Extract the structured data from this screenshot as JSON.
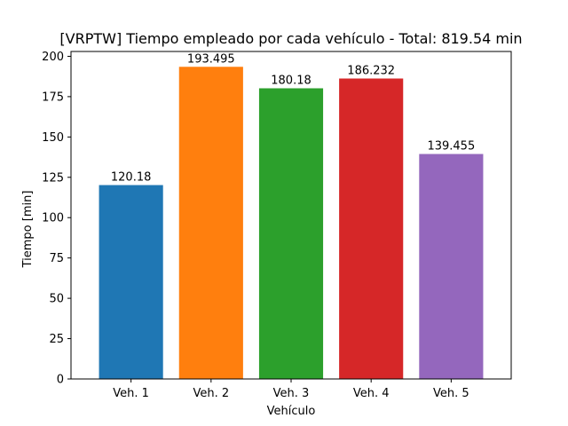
{
  "chart_data": {
    "type": "bar",
    "title": "[VRPTW] Tiempo empleado por cada vehículo - Total: 819.54 min",
    "xlabel": "Vehículo",
    "ylabel": "Tiempo [min]",
    "categories": [
      "Veh. 1",
      "Veh. 2",
      "Veh. 3",
      "Veh. 4",
      "Veh. 5"
    ],
    "values": [
      120.18,
      193.495,
      180.18,
      186.232,
      139.455
    ],
    "value_labels": [
      "120.18",
      "193.495",
      "180.18",
      "186.232",
      "139.455"
    ],
    "colors": [
      "#1f77b4",
      "#ff7f0e",
      "#2ca02c",
      "#d62728",
      "#9467bd"
    ],
    "ylim": [
      0,
      203
    ],
    "yticks": [
      0,
      25,
      50,
      75,
      100,
      125,
      150,
      175,
      200
    ],
    "grid": false,
    "legend": "none"
  }
}
